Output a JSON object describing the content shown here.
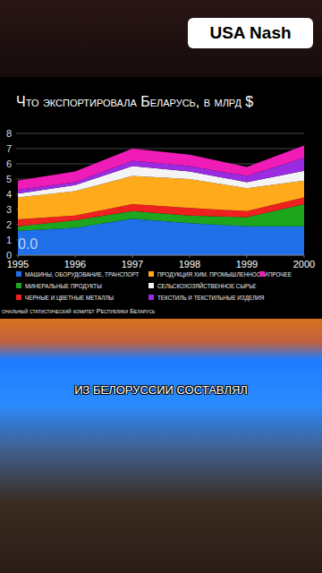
{
  "chart_data": {
    "type": "area",
    "title": "Что экспортировала Беларусь, в млрд $",
    "x": [
      1995,
      1996,
      1997,
      1998,
      1999,
      2000
    ],
    "xlim": [
      1995,
      2000
    ],
    "xticks": [
      1995,
      1996,
      1997,
      1998,
      1999,
      2000
    ],
    "ylim": [
      0,
      8
    ],
    "yticks": [
      0,
      1,
      2,
      3,
      4,
      5,
      6,
      7,
      8
    ],
    "grid": true,
    "stacked": true,
    "legend": "bottom",
    "annotation": "0.0",
    "source": "ональный статистический комитет Республики Беларусь",
    "series": [
      {
        "name": "МАШИНЫ, ОБОРУДОВАНИЕ, ТРАНСПОРТ",
        "color": "#1f6fe8",
        "values": [
          1.6,
          1.8,
          2.4,
          2.1,
          1.9,
          1.9
        ]
      },
      {
        "name": "МИНЕРАЛЬНЫЕ ПРОДУКТЫ",
        "color": "#1ea51e",
        "values": [
          0.3,
          0.5,
          0.5,
          0.5,
          0.6,
          1.45
        ]
      },
      {
        "name": "ЧЕРНЫЕ И ЦВЕТНЫЕ МЕТАЛЛЫ",
        "color": "#ee2020",
        "values": [
          0.45,
          0.3,
          0.45,
          0.5,
          0.4,
          0.45
        ]
      },
      {
        "name": "ПРОДУКЦИЯ ХИМ. ПРОМЫШЛЕННОСТИ",
        "color": "#ffaa1a",
        "values": [
          1.45,
          1.6,
          1.85,
          1.9,
          1.5,
          1.1
        ]
      },
      {
        "name": "СЕЛЬСКОХОЗЯЙСТВЕННОЕ СЫРЬЕ",
        "color": "#f4f4f4",
        "values": [
          0.25,
          0.4,
          0.65,
          0.5,
          0.4,
          0.65
        ]
      },
      {
        "name": "ТЕКСТИЛЬ И ТЕКСТИЛЬНЫЕ ИЗДЕЛИЯ",
        "color": "#9b2be0",
        "values": [
          0.25,
          0.2,
          0.35,
          0.35,
          0.4,
          0.85
        ]
      },
      {
        "name": "ПРОЧЕЕ",
        "color": "#f01cb8",
        "values": [
          0.6,
          0.7,
          0.8,
          0.75,
          0.6,
          0.8
        ]
      }
    ]
  },
  "page": {
    "badge": "USA Nash",
    "caption": "ИЗ БЕЛОРУССИИ СОСТАВЛЯЛ"
  }
}
